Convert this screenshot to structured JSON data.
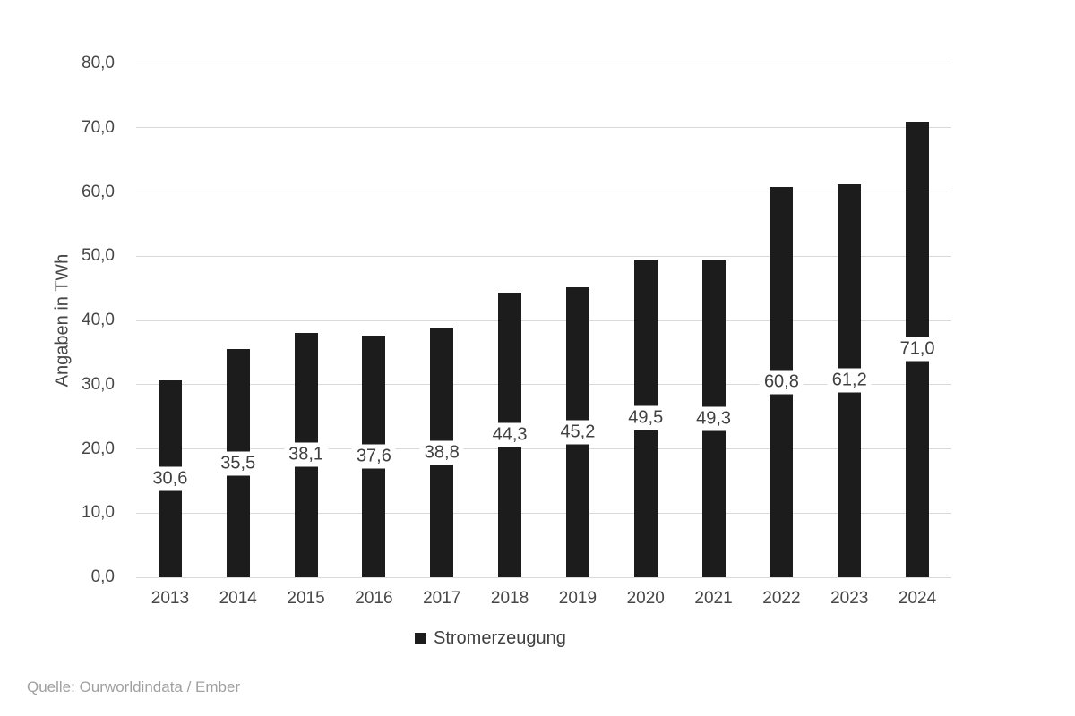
{
  "chart_data": {
    "type": "bar",
    "title": "",
    "categories": [
      "2013",
      "2014",
      "2015",
      "2016",
      "2017",
      "2018",
      "2019",
      "2020",
      "2021",
      "2022",
      "2023",
      "2024"
    ],
    "series": [
      {
        "name": "Stromerzeugung",
        "values": [
          30.6,
          35.5,
          38.1,
          37.6,
          38.8,
          44.3,
          45.2,
          49.5,
          49.3,
          60.8,
          61.2,
          71.0
        ],
        "value_labels": [
          "30,6",
          "35,5",
          "38,1",
          "37,6",
          "38,8",
          "44,3",
          "45,2",
          "49,5",
          "49,3",
          "60,8",
          "61,2",
          "71,0"
        ]
      }
    ],
    "xlabel": "",
    "ylabel": "Angaben in TWh",
    "ylim": [
      0,
      80
    ],
    "yticks": [
      {
        "value": 0,
        "label": "0,0"
      },
      {
        "value": 10,
        "label": "10,0"
      },
      {
        "value": 20,
        "label": "20,0"
      },
      {
        "value": 30,
        "label": "30,0"
      },
      {
        "value": 40,
        "label": "40,0"
      },
      {
        "value": 50,
        "label": "50,0"
      },
      {
        "value": 60,
        "label": "60,0"
      },
      {
        "value": 70,
        "label": "70,0"
      },
      {
        "value": 80,
        "label": "80,0"
      }
    ],
    "grid": true,
    "legend_position": "bottom-center",
    "data_label_style": "centered-in-bar-white-box"
  },
  "legend": {
    "label": "Stromerzeugung"
  },
  "source": {
    "text": "Quelle: Ourworldindata / Ember"
  },
  "colors": {
    "bar": "#1c1c1c",
    "gridline": "#d9d9d9",
    "axis_text": "#474747",
    "data_label_text": "#404040",
    "source_text": "#a0a0a0",
    "background": "#ffffff"
  }
}
